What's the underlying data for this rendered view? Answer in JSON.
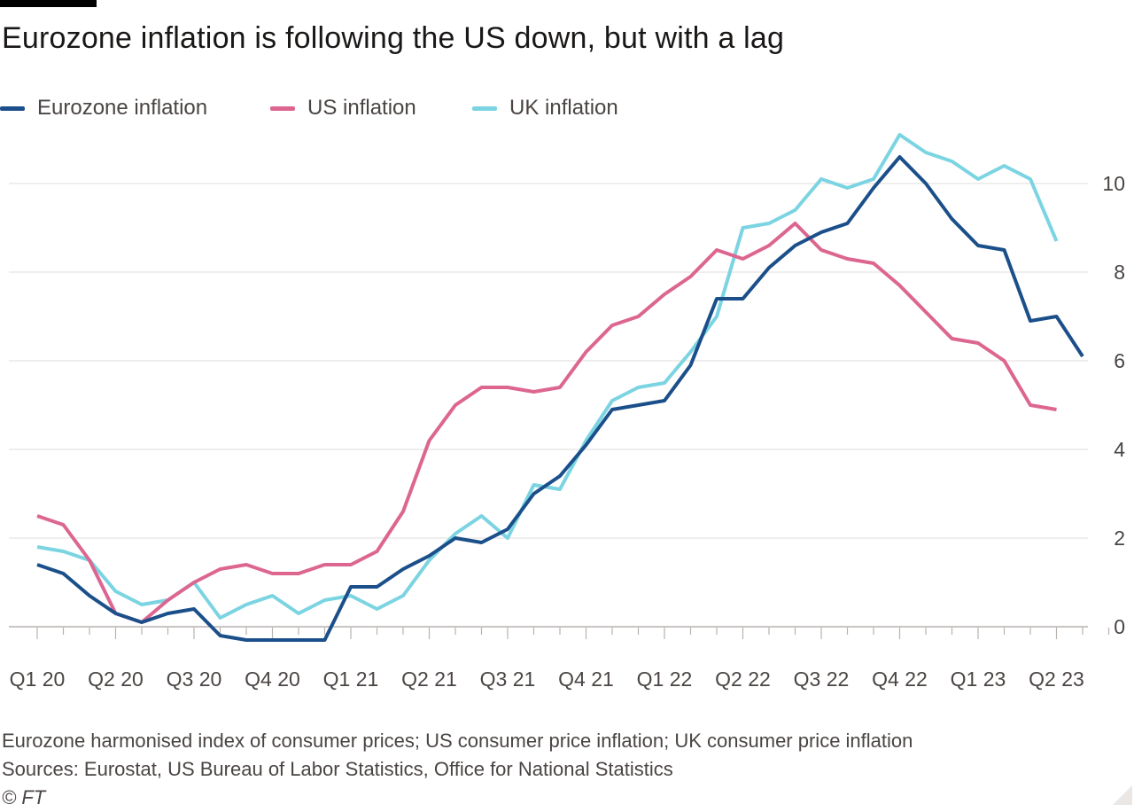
{
  "header": {
    "title": "Eurozone inflation is following the US down, but with a lag"
  },
  "colors": {
    "eurozone": "#1b4f8a",
    "us": "#dc6690",
    "uk": "#7bd4e2"
  },
  "chart_data": {
    "type": "line",
    "title": "Eurozone inflation is following the US down, but with a lag",
    "xlabel": "",
    "ylabel": "",
    "ylim": [
      0,
      11
    ],
    "yticks": [
      0,
      2,
      4,
      6,
      8,
      10
    ],
    "ytick_labels": [
      "0",
      "2",
      "4",
      "6",
      "8",
      "10"
    ],
    "grid": true,
    "legend_position": "top-left",
    "x_tick_labels": [
      "Q1 20",
      "Q2 20",
      "Q3 20",
      "Q4 20",
      "Q1 21",
      "Q2 21",
      "Q3 21",
      "Q4 21",
      "Q1 22",
      "Q2 22",
      "Q3 22",
      "Q4 22",
      "Q1 23",
      "Q2 23"
    ],
    "x_periods": "monthly, Jan 2020 to Jun 2023",
    "series": [
      {
        "name": "Eurozone inflation",
        "key": "eurozone",
        "values": [
          1.4,
          1.2,
          0.7,
          0.3,
          0.1,
          0.3,
          0.4,
          -0.2,
          -0.3,
          -0.3,
          -0.3,
          -0.3,
          0.9,
          0.9,
          1.3,
          1.6,
          2.0,
          1.9,
          2.2,
          3.0,
          3.4,
          4.1,
          4.9,
          5.0,
          5.1,
          5.9,
          7.4,
          7.4,
          8.1,
          8.6,
          8.9,
          9.1,
          9.9,
          10.6,
          10.0,
          9.2,
          8.6,
          8.5,
          6.9,
          7.0,
          6.1
        ]
      },
      {
        "name": "US inflation",
        "key": "us",
        "values": [
          2.5,
          2.3,
          1.5,
          0.3,
          0.1,
          0.6,
          1.0,
          1.3,
          1.4,
          1.2,
          1.2,
          1.4,
          1.4,
          1.7,
          2.6,
          4.2,
          5.0,
          5.4,
          5.4,
          5.3,
          5.4,
          6.2,
          6.8,
          7.0,
          7.5,
          7.9,
          8.5,
          8.3,
          8.6,
          9.1,
          8.5,
          8.3,
          8.2,
          7.7,
          7.1,
          6.5,
          6.4,
          6.0,
          5.0,
          4.9
        ]
      },
      {
        "name": "UK inflation",
        "key": "uk",
        "values": [
          1.8,
          1.7,
          1.5,
          0.8,
          0.5,
          0.6,
          1.0,
          0.2,
          0.5,
          0.7,
          0.3,
          0.6,
          0.7,
          0.4,
          0.7,
          1.5,
          2.1,
          2.5,
          2.0,
          3.2,
          3.1,
          4.2,
          5.1,
          5.4,
          5.5,
          6.2,
          7.0,
          9.0,
          9.1,
          9.4,
          10.1,
          9.9,
          10.1,
          11.1,
          10.7,
          10.5,
          10.1,
          10.4,
          10.1,
          8.7
        ]
      }
    ]
  },
  "footer": {
    "notes": "Eurozone harmonised index of consumer prices; US consumer price inflation; UK consumer price inflation",
    "sources": "Sources: Eurostat, US Bureau of Labor Statistics, Office for National Statistics",
    "copyright": "© FT"
  }
}
